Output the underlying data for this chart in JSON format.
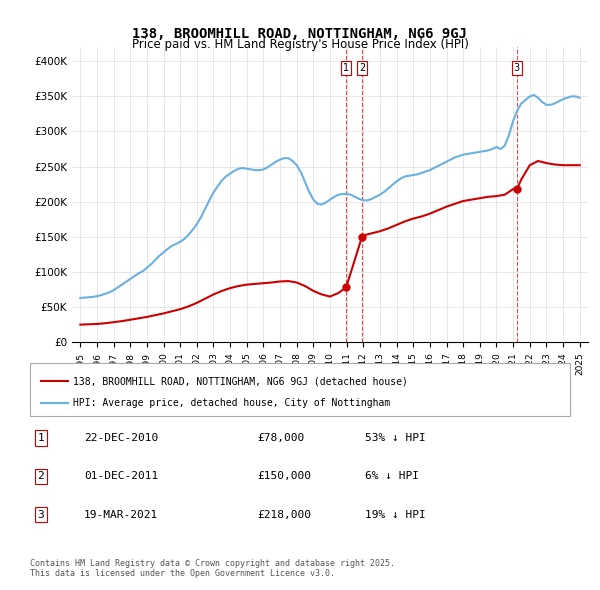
{
  "title": "138, BROOMHILL ROAD, NOTTINGHAM, NG6 9GJ",
  "subtitle": "Price paid vs. HM Land Registry's House Price Index (HPI)",
  "hpi_label": "HPI: Average price, detached house, City of Nottingham",
  "property_label": "138, BROOMHILL ROAD, NOTTINGHAM, NG6 9GJ (detached house)",
  "hpi_color": "#6ab0e0",
  "property_color": "#cc0000",
  "vline_color": "#cc0000",
  "background_color": "#ffffff",
  "grid_color": "#dddddd",
  "ylim": [
    0,
    420000
  ],
  "yticks": [
    0,
    50000,
    100000,
    150000,
    200000,
    250000,
    300000,
    350000,
    400000
  ],
  "ytick_labels": [
    "£0",
    "£50K",
    "£100K",
    "£150K",
    "£200K",
    "£250K",
    "£300K",
    "£350K",
    "£400K"
  ],
  "transactions": [
    {
      "date": 2010.97,
      "price": 78000,
      "label": "1"
    },
    {
      "date": 2011.92,
      "price": 150000,
      "label": "2"
    },
    {
      "date": 2021.22,
      "price": 218000,
      "label": "3"
    }
  ],
  "transaction_table": [
    {
      "num": "1",
      "date": "22-DEC-2010",
      "price": "£78,000",
      "pct": "53% ↓ HPI"
    },
    {
      "num": "2",
      "date": "01-DEC-2011",
      "price": "£150,000",
      "pct": "6% ↓ HPI"
    },
    {
      "num": "3",
      "date": "19-MAR-2021",
      "price": "£218,000",
      "pct": "19% ↓ HPI"
    }
  ],
  "footer": "Contains HM Land Registry data © Crown copyright and database right 2025.\nThis data is licensed under the Open Government Licence v3.0.",
  "hpi_data": {
    "years": [
      1995.0,
      1995.25,
      1995.5,
      1995.75,
      1996.0,
      1996.25,
      1996.5,
      1996.75,
      1997.0,
      1997.25,
      1997.5,
      1997.75,
      1998.0,
      1998.25,
      1998.5,
      1998.75,
      1999.0,
      1999.25,
      1999.5,
      1999.75,
      2000.0,
      2000.25,
      2000.5,
      2000.75,
      2001.0,
      2001.25,
      2001.5,
      2001.75,
      2002.0,
      2002.25,
      2002.5,
      2002.75,
      2003.0,
      2003.25,
      2003.5,
      2003.75,
      2004.0,
      2004.25,
      2004.5,
      2004.75,
      2005.0,
      2005.25,
      2005.5,
      2005.75,
      2006.0,
      2006.25,
      2006.5,
      2006.75,
      2007.0,
      2007.25,
      2007.5,
      2007.75,
      2008.0,
      2008.25,
      2008.5,
      2008.75,
      2009.0,
      2009.25,
      2009.5,
      2009.75,
      2010.0,
      2010.25,
      2010.5,
      2010.75,
      2011.0,
      2011.25,
      2011.5,
      2011.75,
      2012.0,
      2012.25,
      2012.5,
      2012.75,
      2013.0,
      2013.25,
      2013.5,
      2013.75,
      2014.0,
      2014.25,
      2014.5,
      2014.75,
      2015.0,
      2015.25,
      2015.5,
      2015.75,
      2016.0,
      2016.25,
      2016.5,
      2016.75,
      2017.0,
      2017.25,
      2017.5,
      2017.75,
      2018.0,
      2018.25,
      2018.5,
      2018.75,
      2019.0,
      2019.25,
      2019.5,
      2019.75,
      2020.0,
      2020.25,
      2020.5,
      2020.75,
      2021.0,
      2021.25,
      2021.5,
      2021.75,
      2022.0,
      2022.25,
      2022.5,
      2022.75,
      2023.0,
      2023.25,
      2023.5,
      2023.75,
      2024.0,
      2024.25,
      2024.5,
      2024.75,
      2025.0
    ],
    "values": [
      63000,
      63500,
      64000,
      64500,
      65500,
      67000,
      69000,
      71000,
      74000,
      78000,
      82000,
      86000,
      90000,
      94000,
      98000,
      101000,
      106000,
      111000,
      117000,
      123000,
      128000,
      133000,
      137000,
      140000,
      143000,
      147000,
      153000,
      160000,
      168000,
      178000,
      190000,
      202000,
      213000,
      222000,
      230000,
      236000,
      240000,
      244000,
      247000,
      248000,
      247000,
      246000,
      245000,
      245000,
      246000,
      249000,
      253000,
      257000,
      260000,
      262000,
      262000,
      258000,
      252000,
      242000,
      228000,
      214000,
      203000,
      197000,
      196000,
      199000,
      203000,
      207000,
      210000,
      211000,
      211000,
      210000,
      207000,
      204000,
      202000,
      202000,
      204000,
      207000,
      210000,
      214000,
      219000,
      224000,
      229000,
      233000,
      236000,
      237000,
      238000,
      239000,
      241000,
      243000,
      245000,
      248000,
      251000,
      254000,
      257000,
      260000,
      263000,
      265000,
      267000,
      268000,
      269000,
      270000,
      271000,
      272000,
      273000,
      275000,
      278000,
      275000,
      280000,
      295000,
      315000,
      330000,
      340000,
      345000,
      350000,
      352000,
      348000,
      342000,
      338000,
      338000,
      340000,
      343000,
      346000,
      348000,
      350000,
      350000,
      348000
    ]
  },
  "property_data": {
    "years": [
      1995.0,
      1995.5,
      1996.0,
      1996.5,
      1997.0,
      1997.5,
      1998.0,
      1998.5,
      1999.0,
      1999.5,
      2000.0,
      2000.5,
      2001.0,
      2001.5,
      2002.0,
      2002.5,
      2003.0,
      2003.5,
      2004.0,
      2004.5,
      2005.0,
      2005.5,
      2006.0,
      2006.5,
      2007.0,
      2007.5,
      2008.0,
      2008.5,
      2009.0,
      2009.5,
      2010.0,
      2010.5,
      2010.97,
      2011.92,
      2012.0,
      2012.5,
      2013.0,
      2013.5,
      2014.0,
      2014.5,
      2015.0,
      2015.5,
      2016.0,
      2016.5,
      2017.0,
      2017.5,
      2018.0,
      2018.5,
      2019.0,
      2019.5,
      2020.0,
      2020.5,
      2021.0,
      2021.22,
      2021.5,
      2022.0,
      2022.5,
      2023.0,
      2023.5,
      2024.0,
      2024.5,
      2025.0
    ],
    "values": [
      25000,
      25500,
      26000,
      27000,
      28500,
      30000,
      32000,
      34000,
      36000,
      38500,
      41000,
      44000,
      47000,
      51000,
      56000,
      62000,
      68000,
      73000,
      77000,
      80000,
      82000,
      83000,
      84000,
      85000,
      86500,
      87000,
      85000,
      80000,
      73000,
      68000,
      65000,
      70000,
      78000,
      150000,
      152000,
      155000,
      158000,
      162000,
      167000,
      172000,
      176000,
      179000,
      183000,
      188000,
      193000,
      197000,
      201000,
      203000,
      205000,
      207000,
      208000,
      210000,
      218000,
      218000,
      232000,
      252000,
      258000,
      255000,
      253000,
      252000,
      252000,
      252000
    ]
  }
}
